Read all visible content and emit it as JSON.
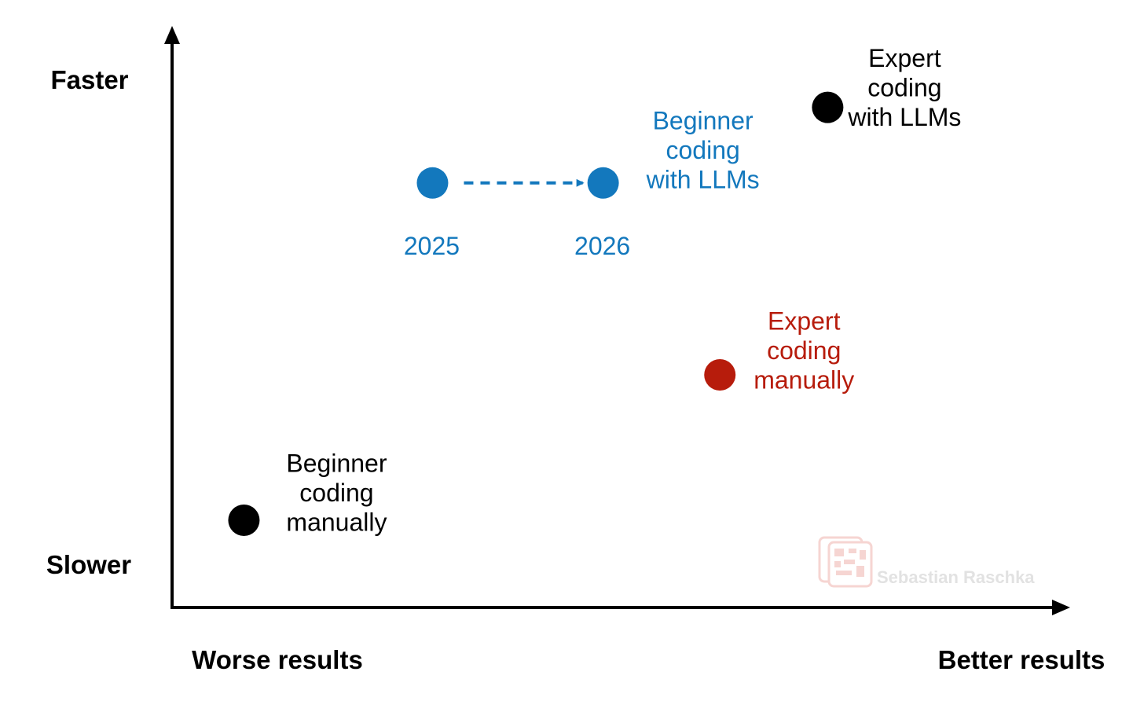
{
  "chart_data": {
    "type": "scatter",
    "title": "",
    "xlabel": {
      "low": "Worse results",
      "high": "Better results"
    },
    "ylabel": {
      "low": "Slower",
      "high": "Faster"
    },
    "xlim": [
      0,
      100
    ],
    "ylim": [
      0,
      100
    ],
    "grid": false,
    "points": [
      {
        "id": "beginner-manual",
        "label_lines": [
          "Beginner",
          "coding",
          "manually"
        ],
        "x": 8,
        "y": 15,
        "color": "#000000"
      },
      {
        "id": "expert-manual",
        "label_lines": [
          "Expert",
          "coding",
          "manually"
        ],
        "x": 61,
        "y": 40,
        "color": "#b71c0c"
      },
      {
        "id": "beginner-llm-2025",
        "label_lines": [
          "2025"
        ],
        "x": 29,
        "y": 73,
        "color": "#1378bd"
      },
      {
        "id": "beginner-llm-2026",
        "label_lines": [
          "2026"
        ],
        "x": 48,
        "y": 73,
        "color": "#1378bd"
      },
      {
        "id": "expert-llm",
        "label_lines": [
          "Expert",
          "coding",
          "with LLMs"
        ],
        "x": 73,
        "y": 86,
        "color": "#000000"
      }
    ],
    "group_label": {
      "for": "beginner-llm-2026",
      "lines": [
        "Beginner",
        "coding",
        "with LLMs"
      ],
      "color": "#1378bd"
    },
    "arrow": {
      "from": "beginner-llm-2025",
      "to": "beginner-llm-2026",
      "style": "dashed",
      "color": "#1378bd"
    },
    "watermark": "Sebastian Raschka"
  }
}
